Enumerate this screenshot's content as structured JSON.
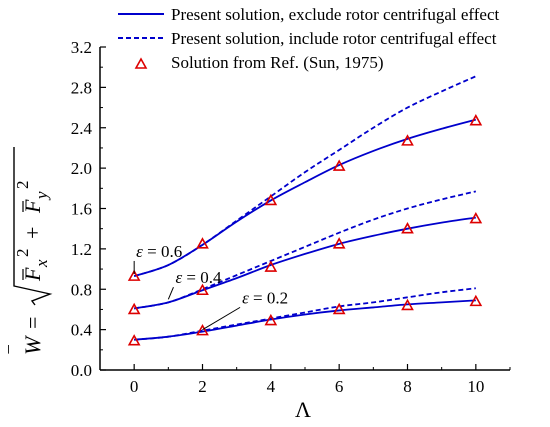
{
  "chart_data": {
    "type": "line",
    "xlabel": "Λ",
    "ylabel_parts": {
      "lhs_var": "W",
      "lhs_bar": "‾",
      "eq": "=",
      "fx": "F",
      "fx_sub": "x",
      "fy": "F",
      "fy_sub": "y",
      "exp": "2",
      "plus": "+"
    },
    "xlim": [
      -1,
      11
    ],
    "ylim": [
      0.0,
      3.2
    ],
    "xticks": [
      0,
      2,
      4,
      6,
      8,
      10
    ],
    "xtick_labels": [
      "0",
      "2",
      "4",
      "6",
      "8",
      "10"
    ],
    "yticks": [
      0.0,
      0.4,
      0.8,
      1.2,
      1.6,
      2.0,
      2.4,
      2.8,
      3.2
    ],
    "ytick_labels": [
      "0.0",
      "0.4",
      "0.8",
      "1.2",
      "1.6",
      "2.0",
      "2.4",
      "2.8",
      "3.2"
    ],
    "grid": false,
    "legend_position": "top-right",
    "legend": [
      {
        "label": "Present solution, exclude rotor centrifugal effect",
        "style": "solid"
      },
      {
        "label": "Present solution, include rotor centrifugal effect",
        "style": "dashed"
      },
      {
        "label": "Solution from Ref. (Sun, 1975)",
        "style": "triangle"
      }
    ],
    "series": [
      {
        "group": "eps_0.6",
        "style": "solid",
        "x": [
          0,
          1,
          2,
          3,
          4,
          5,
          6,
          7,
          8,
          9,
          10
        ],
        "y": [
          0.93,
          1.04,
          1.24,
          1.47,
          1.68,
          1.86,
          2.03,
          2.17,
          2.29,
          2.39,
          2.48
        ]
      },
      {
        "group": "eps_0.6",
        "style": "dashed",
        "x": [
          0,
          1,
          2,
          3,
          4,
          5,
          6,
          7,
          8,
          9,
          10
        ],
        "y": [
          0.93,
          1.04,
          1.24,
          1.48,
          1.72,
          1.96,
          2.18,
          2.4,
          2.6,
          2.76,
          2.91
        ]
      },
      {
        "group": "eps_0.6",
        "style": "triangle",
        "x": [
          0,
          2,
          4,
          6,
          8,
          10
        ],
        "y": [
          0.93,
          1.25,
          1.68,
          2.02,
          2.27,
          2.47
        ]
      },
      {
        "group": "eps_0.4",
        "style": "solid",
        "x": [
          0,
          1,
          2,
          3,
          4,
          5,
          6,
          7,
          8,
          9,
          10
        ],
        "y": [
          0.61,
          0.67,
          0.79,
          0.91,
          1.04,
          1.15,
          1.25,
          1.33,
          1.4,
          1.46,
          1.51
        ]
      },
      {
        "group": "eps_0.4",
        "style": "dashed",
        "x": [
          0,
          1,
          2,
          3,
          4,
          5,
          6,
          7,
          8,
          9,
          10
        ],
        "y": [
          0.61,
          0.67,
          0.8,
          0.94,
          1.08,
          1.22,
          1.36,
          1.49,
          1.6,
          1.69,
          1.77
        ]
      },
      {
        "group": "eps_0.4",
        "style": "triangle",
        "x": [
          0,
          2,
          4,
          6,
          8,
          10
        ],
        "y": [
          0.6,
          0.79,
          1.02,
          1.25,
          1.4,
          1.5
        ]
      },
      {
        "group": "eps_0.2",
        "style": "solid",
        "x": [
          0,
          1,
          2,
          3,
          4,
          5,
          6,
          7,
          8,
          9,
          10
        ],
        "y": [
          0.3,
          0.33,
          0.38,
          0.44,
          0.5,
          0.55,
          0.59,
          0.62,
          0.65,
          0.67,
          0.69
        ]
      },
      {
        "group": "eps_0.2",
        "style": "dashed",
        "x": [
          0,
          1,
          2,
          3,
          4,
          5,
          6,
          7,
          8,
          9,
          10
        ],
        "y": [
          0.3,
          0.33,
          0.39,
          0.45,
          0.51,
          0.57,
          0.63,
          0.67,
          0.72,
          0.77,
          0.81
        ]
      },
      {
        "group": "eps_0.2",
        "style": "triangle",
        "x": [
          0,
          2,
          4,
          6,
          8,
          10
        ],
        "y": [
          0.29,
          0.39,
          0.49,
          0.6,
          0.64,
          0.68
        ]
      }
    ],
    "annotations": [
      {
        "eps_symbol": "ε",
        "eq": "=",
        "value": "0.6",
        "pointer_x": 0,
        "pointer_y": 0.93,
        "text_x": 0.0,
        "text_y": 1.12
      },
      {
        "eps_symbol": "ε",
        "eq": "=",
        "value": "0.4",
        "pointer_x": 1.0,
        "pointer_y": 0.68,
        "text_x": 1.15,
        "text_y": 0.86
      },
      {
        "eps_symbol": "ε",
        "eq": "=",
        "value": "0.2",
        "pointer_x": 2.0,
        "pointer_y": 0.38,
        "text_x": 3.1,
        "text_y": 0.66
      }
    ],
    "colors": {
      "line": "#0000cc",
      "marker": "#dd0000",
      "axis": "#000000"
    }
  }
}
